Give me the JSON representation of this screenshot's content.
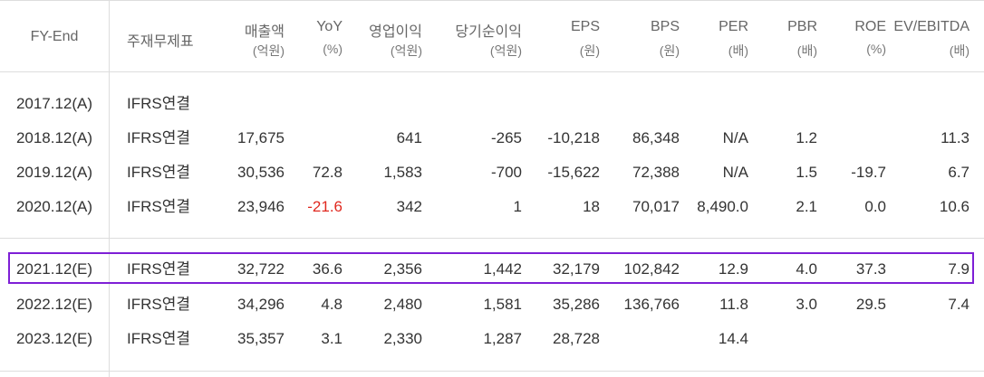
{
  "header": {
    "fy": "FY-End",
    "statement": "주재무제표",
    "columns": [
      {
        "label": "매출액",
        "unit": "(억원)"
      },
      {
        "label": "YoY",
        "unit": "(%)"
      },
      {
        "label": "영업이익",
        "unit": "(억원)"
      },
      {
        "label": "당기순이익",
        "unit": "(억원)"
      },
      {
        "label": "EPS",
        "unit": "(원)"
      },
      {
        "label": "BPS",
        "unit": "(원)"
      },
      {
        "label": "PER",
        "unit": "(배)"
      },
      {
        "label": "PBR",
        "unit": "(배)"
      },
      {
        "label": "ROE",
        "unit": "(%)"
      },
      {
        "label": "EV/EBITDA",
        "unit": "(배)"
      }
    ]
  },
  "rows": [
    {
      "fy": "2017.12(A)",
      "statement": "IFRS연결",
      "values": [
        "",
        "",
        "",
        "",
        "",
        "",
        "",
        "",
        "",
        ""
      ]
    },
    {
      "fy": "2018.12(A)",
      "statement": "IFRS연결",
      "values": [
        "17,675",
        "",
        "641",
        "-265",
        "-10,218",
        "86,348",
        "N/A",
        "1.2",
        "",
        "11.3"
      ]
    },
    {
      "fy": "2019.12(A)",
      "statement": "IFRS연결",
      "values": [
        "30,536",
        "72.8",
        "1,583",
        "-700",
        "-15,622",
        "72,388",
        "N/A",
        "1.5",
        "-19.7",
        "6.7"
      ]
    },
    {
      "fy": "2020.12(A)",
      "statement": "IFRS연결",
      "values": [
        "23,946",
        "-21.6",
        "342",
        "1",
        "18",
        "70,017",
        "8,490.0",
        "2.1",
        "0.0",
        "10.6"
      ]
    },
    {
      "fy": "2021.12(E)",
      "statement": "IFRS연결",
      "values": [
        "32,722",
        "36.6",
        "2,356",
        "1,442",
        "32,179",
        "102,842",
        "12.9",
        "4.0",
        "37.3",
        "7.9"
      ]
    },
    {
      "fy": "2022.12(E)",
      "statement": "IFRS연결",
      "values": [
        "34,296",
        "4.8",
        "2,480",
        "1,581",
        "35,286",
        "136,766",
        "11.8",
        "3.0",
        "29.5",
        "7.4"
      ]
    },
    {
      "fy": "2023.12(E)",
      "statement": "IFRS연결",
      "values": [
        "35,357",
        "3.1",
        "2,330",
        "1,287",
        "28,728",
        "",
        "14.4",
        "",
        "",
        ""
      ]
    }
  ],
  "colors": {
    "negative_highlight": "#e0281f",
    "selection_border": "#7e1fd6"
  }
}
